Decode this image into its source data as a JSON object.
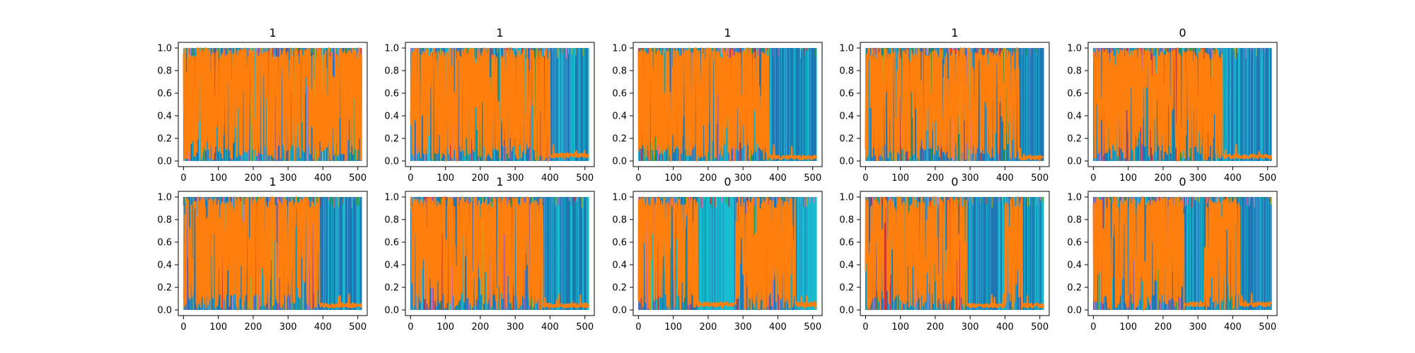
{
  "figure": {
    "layout": {
      "rows": 2,
      "cols": 5
    },
    "background": "#ffffff"
  },
  "palette": {
    "blue": "#1f77b4",
    "orange": "#ff7f0e",
    "cyan": "#17becf",
    "green": "#2ca02c",
    "olive": "#bcbd22",
    "pink": "#e377c2",
    "red": "#d62728",
    "purple": "#9467bd"
  },
  "chart_data": [
    {
      "type": "line",
      "title": "1",
      "xlim": [
        -15,
        527
      ],
      "ylim": [
        -0.05,
        1.05
      ],
      "xticks": [
        0,
        100,
        200,
        300,
        400,
        500
      ],
      "yticks": [
        0.0,
        0.2,
        0.4,
        0.6,
        0.8,
        1.0
      ],
      "grid": false,
      "dominant_blocks": [
        {
          "x_start": 0,
          "x_end": 512,
          "series": "orange"
        }
      ],
      "low_tail": {
        "x_start": 470,
        "x_end": 512,
        "level": 0.1
      }
    },
    {
      "type": "line",
      "title": "1",
      "xlim": [
        -15,
        527
      ],
      "ylim": [
        -0.05,
        1.05
      ],
      "xticks": [
        0,
        100,
        200,
        300,
        400,
        500
      ],
      "yticks": [
        0.0,
        0.2,
        0.4,
        0.6,
        0.8,
        1.0
      ],
      "grid": false,
      "dominant_blocks": [
        {
          "x_start": 0,
          "x_end": 400,
          "series": "orange"
        },
        {
          "x_start": 400,
          "x_end": 512,
          "series": "blue"
        }
      ],
      "low_tail": {
        "x_start": 400,
        "x_end": 512,
        "level": 0.05
      }
    },
    {
      "type": "line",
      "title": "1",
      "xlim": [
        -15,
        527
      ],
      "ylim": [
        -0.05,
        1.05
      ],
      "xticks": [
        0,
        100,
        200,
        300,
        400,
        500
      ],
      "yticks": [
        0.0,
        0.2,
        0.4,
        0.6,
        0.8,
        1.0
      ],
      "grid": false,
      "dominant_blocks": [
        {
          "x_start": 0,
          "x_end": 375,
          "series": "orange"
        },
        {
          "x_start": 375,
          "x_end": 512,
          "series": "blue"
        }
      ],
      "low_tail": {
        "x_start": 375,
        "x_end": 512,
        "level": 0.03
      }
    },
    {
      "type": "line",
      "title": "1",
      "xlim": [
        -15,
        527
      ],
      "ylim": [
        -0.05,
        1.05
      ],
      "xticks": [
        0,
        100,
        200,
        300,
        400,
        500
      ],
      "yticks": [
        0.0,
        0.2,
        0.4,
        0.6,
        0.8,
        1.0
      ],
      "grid": false,
      "dominant_blocks": [
        {
          "x_start": 0,
          "x_end": 440,
          "series": "orange"
        },
        {
          "x_start": 440,
          "x_end": 512,
          "series": "blue"
        }
      ],
      "low_tail": {
        "x_start": 440,
        "x_end": 512,
        "level": 0.03
      }
    },
    {
      "type": "line",
      "title": "0",
      "xlim": [
        -15,
        527
      ],
      "ylim": [
        -0.05,
        1.05
      ],
      "xticks": [
        0,
        100,
        200,
        300,
        400,
        500
      ],
      "yticks": [
        0.0,
        0.2,
        0.4,
        0.6,
        0.8,
        1.0
      ],
      "grid": false,
      "dominant_blocks": [
        {
          "x_start": 0,
          "x_end": 370,
          "series": "orange"
        },
        {
          "x_start": 370,
          "x_end": 512,
          "series": "blue"
        }
      ],
      "low_tail": {
        "x_start": 370,
        "x_end": 512,
        "level": 0.04
      }
    },
    {
      "type": "line",
      "title": "1",
      "xlim": [
        -15,
        527
      ],
      "ylim": [
        -0.05,
        1.05
      ],
      "xticks": [
        0,
        100,
        200,
        300,
        400,
        500
      ],
      "yticks": [
        0.0,
        0.2,
        0.4,
        0.6,
        0.8,
        1.0
      ],
      "grid": false,
      "dominant_blocks": [
        {
          "x_start": 0,
          "x_end": 390,
          "series": "orange"
        },
        {
          "x_start": 390,
          "x_end": 512,
          "series": "blue"
        }
      ],
      "low_tail": {
        "x_start": 390,
        "x_end": 512,
        "level": 0.04
      }
    },
    {
      "type": "line",
      "title": "1",
      "xlim": [
        -15,
        527
      ],
      "ylim": [
        -0.05,
        1.05
      ],
      "xticks": [
        0,
        100,
        200,
        300,
        400,
        500
      ],
      "yticks": [
        0.0,
        0.2,
        0.4,
        0.6,
        0.8,
        1.0
      ],
      "grid": false,
      "dominant_blocks": [
        {
          "x_start": 0,
          "x_end": 380,
          "series": "orange"
        },
        {
          "x_start": 380,
          "x_end": 512,
          "series": "blue"
        }
      ],
      "low_tail": {
        "x_start": 380,
        "x_end": 512,
        "level": 0.04
      }
    },
    {
      "type": "line",
      "title": "0",
      "xlim": [
        -15,
        527
      ],
      "ylim": [
        -0.05,
        1.05
      ],
      "xticks": [
        0,
        100,
        200,
        300,
        400,
        500
      ],
      "yticks": [
        0.0,
        0.2,
        0.4,
        0.6,
        0.8,
        1.0
      ],
      "grid": false,
      "dominant_blocks": [
        {
          "x_start": 0,
          "x_end": 170,
          "series": "orange"
        },
        {
          "x_start": 170,
          "x_end": 280,
          "series": "cyan"
        },
        {
          "x_start": 280,
          "x_end": 450,
          "series": "orange"
        },
        {
          "x_start": 450,
          "x_end": 512,
          "series": "cyan"
        }
      ],
      "low_tail": {
        "x_start": 170,
        "x_end": 512,
        "level": 0.05
      }
    },
    {
      "type": "line",
      "title": "0",
      "xlim": [
        -15,
        527
      ],
      "ylim": [
        -0.05,
        1.05
      ],
      "xticks": [
        0,
        100,
        200,
        300,
        400,
        500
      ],
      "yticks": [
        0.0,
        0.2,
        0.4,
        0.6,
        0.8,
        1.0
      ],
      "grid": false,
      "dominant_blocks": [
        {
          "x_start": 0,
          "x_end": 290,
          "series": "orange"
        },
        {
          "x_start": 290,
          "x_end": 400,
          "series": "blue"
        },
        {
          "x_start": 400,
          "x_end": 450,
          "series": "orange"
        },
        {
          "x_start": 450,
          "x_end": 512,
          "series": "blue"
        }
      ],
      "low_tail": {
        "x_start": 290,
        "x_end": 512,
        "level": 0.04
      }
    },
    {
      "type": "line",
      "title": "0",
      "xlim": [
        -15,
        527
      ],
      "ylim": [
        -0.05,
        1.05
      ],
      "xticks": [
        0,
        100,
        200,
        300,
        400,
        500
      ],
      "yticks": [
        0.0,
        0.2,
        0.4,
        0.6,
        0.8,
        1.0
      ],
      "grid": false,
      "dominant_blocks": [
        {
          "x_start": 0,
          "x_end": 260,
          "series": "orange"
        },
        {
          "x_start": 260,
          "x_end": 320,
          "series": "blue"
        },
        {
          "x_start": 320,
          "x_end": 420,
          "series": "orange"
        },
        {
          "x_start": 420,
          "x_end": 512,
          "series": "blue"
        }
      ],
      "low_tail": {
        "x_start": 260,
        "x_end": 512,
        "level": 0.05
      }
    }
  ]
}
